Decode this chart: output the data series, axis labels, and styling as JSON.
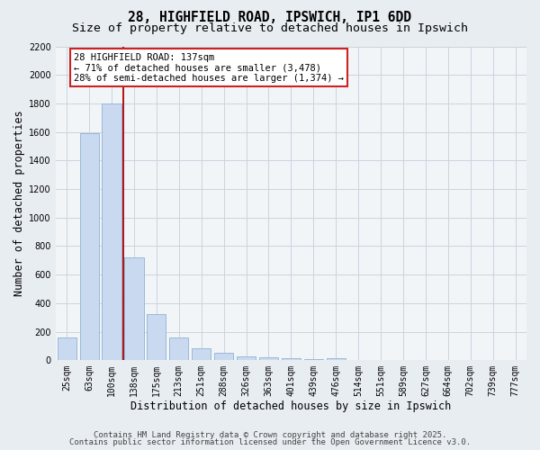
{
  "title_line1": "28, HIGHFIELD ROAD, IPSWICH, IP1 6DD",
  "title_line2": "Size of property relative to detached houses in Ipswich",
  "xlabel": "Distribution of detached houses by size in Ipswich",
  "ylabel": "Number of detached properties",
  "categories": [
    "25sqm",
    "63sqm",
    "100sqm",
    "138sqm",
    "175sqm",
    "213sqm",
    "251sqm",
    "288sqm",
    "326sqm",
    "363sqm",
    "401sqm",
    "439sqm",
    "476sqm",
    "514sqm",
    "551sqm",
    "589sqm",
    "627sqm",
    "664sqm",
    "702sqm",
    "739sqm",
    "777sqm"
  ],
  "values": [
    160,
    1590,
    1800,
    720,
    320,
    160,
    85,
    55,
    25,
    20,
    15,
    5,
    15,
    0,
    0,
    0,
    0,
    0,
    0,
    0,
    0
  ],
  "bar_color": "#c9daf0",
  "bar_edge_color": "#9ab8d8",
  "vline_color": "#aa0000",
  "annotation_line1": "28 HIGHFIELD ROAD: 137sqm",
  "annotation_line2": "← 71% of detached houses are smaller (3,478)",
  "annotation_line3": "28% of semi-detached houses are larger (1,374) →",
  "annotation_box_color": "white",
  "annotation_box_edge": "#cc2222",
  "ylim_max": 2200,
  "yticks": [
    0,
    200,
    400,
    600,
    800,
    1000,
    1200,
    1400,
    1600,
    1800,
    2000,
    2200
  ],
  "footnote1": "Contains HM Land Registry data © Crown copyright and database right 2025.",
  "footnote2": "Contains public sector information licensed under the Open Government Licence v3.0.",
  "bg_color": "#e8edf2",
  "plot_bg_color": "#f2f5f8",
  "grid_color": "#c8d4de",
  "title_fontsize": 10.5,
  "subtitle_fontsize": 9.5,
  "axis_label_fontsize": 8.5,
  "tick_fontsize": 7,
  "annot_fontsize": 7.5,
  "footnote_fontsize": 6.5
}
